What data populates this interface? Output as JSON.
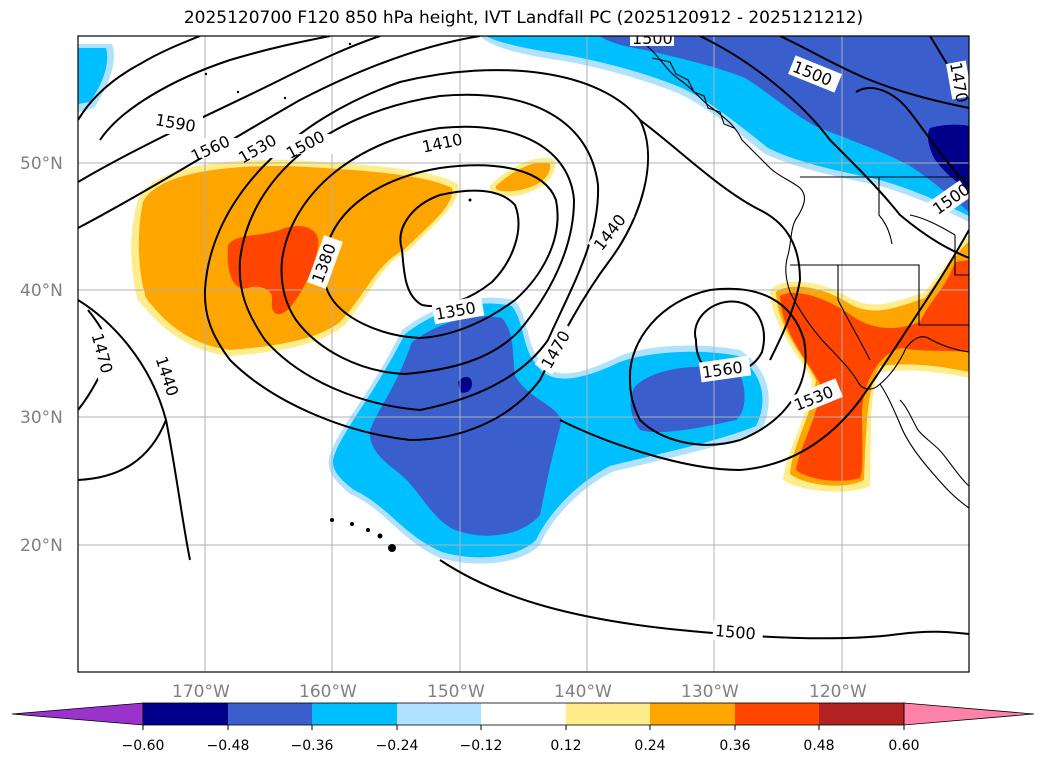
{
  "title": "2025120700 F120 850 hPa height, IVT Landfall PC (2025120912 - 2025121212)",
  "colors": {
    "ocean_background": "#ffffff",
    "gridline": "#b0b0b0",
    "contour": "#000000",
    "coastline": "#000000"
  },
  "map": {
    "latitude_labels": [
      "50°N",
      "40°N",
      "30°N",
      "20°N"
    ],
    "longitude_labels": [
      "170°W",
      "160°W",
      "150°W",
      "140°W",
      "130°W",
      "120°W"
    ]
  },
  "contour_labels": [
    "1590",
    "1560",
    "1530",
    "1500",
    "1410",
    "1380",
    "1350",
    "1440",
    "1470",
    "1440",
    "1470",
    "1560",
    "1530",
    "1500",
    "1500",
    "1500",
    "1470",
    "1500"
  ],
  "colorbar": {
    "tick_labels": [
      "−0.60",
      "−0.48",
      "−0.36",
      "−0.24",
      "−0.12",
      "0.12",
      "0.24",
      "0.36",
      "0.48",
      "0.60"
    ],
    "colors": [
      "#9933cc",
      "#00008b",
      "#3a5fcd",
      "#00bfff",
      "#b0e2ff",
      "#ffffff",
      "#ffec8b",
      "#ffa500",
      "#ff4500",
      "#b22222",
      "#ff82ab"
    ]
  }
}
